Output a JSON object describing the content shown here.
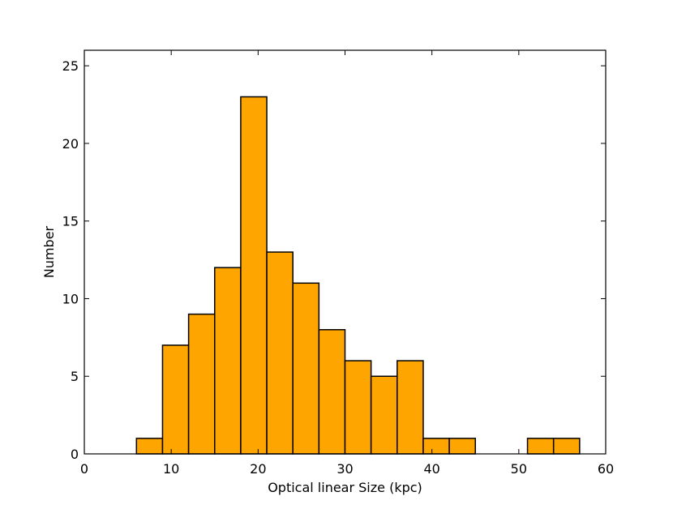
{
  "chart_data": {
    "type": "bar",
    "title": "",
    "xlabel": "Optical linear Size (kpc)",
    "ylabel": "Number",
    "xlim": [
      0,
      60
    ],
    "ylim": [
      0,
      26
    ],
    "xticks": [
      0,
      10,
      20,
      30,
      40,
      50,
      60
    ],
    "yticks": [
      0,
      5,
      10,
      15,
      20,
      25
    ],
    "grid": false,
    "bar_color": "#FFA500",
    "edge_color": "#000000",
    "bins": [
      {
        "x0": 6,
        "x1": 9,
        "value": 1
      },
      {
        "x0": 9,
        "x1": 12,
        "value": 7
      },
      {
        "x0": 12,
        "x1": 15,
        "value": 9
      },
      {
        "x0": 15,
        "x1": 18,
        "value": 12
      },
      {
        "x0": 18,
        "x1": 21,
        "value": 23
      },
      {
        "x0": 21,
        "x1": 24,
        "value": 13
      },
      {
        "x0": 24,
        "x1": 27,
        "value": 11
      },
      {
        "x0": 27,
        "x1": 30,
        "value": 8
      },
      {
        "x0": 30,
        "x1": 33,
        "value": 6
      },
      {
        "x0": 33,
        "x1": 36,
        "value": 5
      },
      {
        "x0": 36,
        "x1": 39,
        "value": 6
      },
      {
        "x0": 39,
        "x1": 42,
        "value": 1
      },
      {
        "x0": 42,
        "x1": 45,
        "value": 1
      },
      {
        "x0": 45,
        "x1": 48,
        "value": 0
      },
      {
        "x0": 48,
        "x1": 51,
        "value": 0
      },
      {
        "x0": 51,
        "x1": 54,
        "value": 1
      },
      {
        "x0": 54,
        "x1": 57,
        "value": 1
      }
    ]
  }
}
